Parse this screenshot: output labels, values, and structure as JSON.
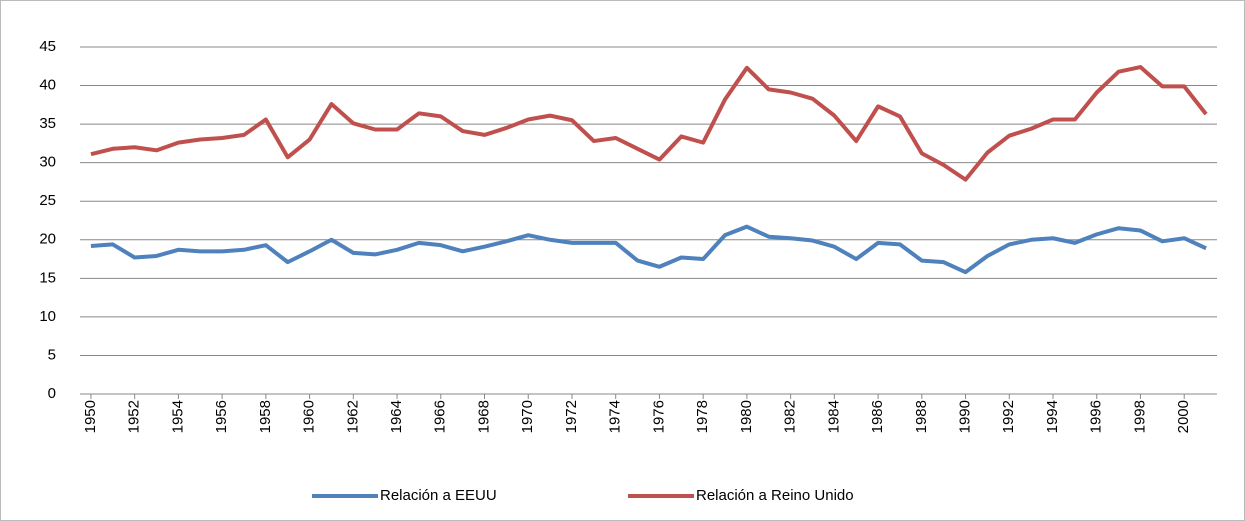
{
  "chart_data": {
    "type": "line",
    "x": [
      1950,
      1951,
      1952,
      1953,
      1954,
      1955,
      1956,
      1957,
      1958,
      1959,
      1960,
      1961,
      1962,
      1963,
      1964,
      1965,
      1966,
      1967,
      1968,
      1969,
      1970,
      1971,
      1972,
      1973,
      1974,
      1975,
      1976,
      1977,
      1978,
      1979,
      1980,
      1981,
      1982,
      1983,
      1984,
      1985,
      1986,
      1987,
      1988,
      1989,
      1990,
      1991,
      1992,
      1993,
      1994,
      1995,
      1996,
      1997,
      1998,
      1999,
      2000,
      2001
    ],
    "series": [
      {
        "name": "Relación a EEUU",
        "color": "#4f81bd",
        "values": [
          19.2,
          19.4,
          17.7,
          17.9,
          18.7,
          18.5,
          18.5,
          18.7,
          19.3,
          17.1,
          18.5,
          20.0,
          18.3,
          18.1,
          18.7,
          19.6,
          19.3,
          18.5,
          19.1,
          19.8,
          20.6,
          20.0,
          19.6,
          19.6,
          19.6,
          17.3,
          16.5,
          17.7,
          17.5,
          20.6,
          21.7,
          20.4,
          20.2,
          19.9,
          19.1,
          17.5,
          19.6,
          19.4,
          17.3,
          17.1,
          15.8,
          17.9,
          19.4,
          20.0,
          20.2,
          19.6,
          20.7,
          21.5,
          21.2,
          19.8,
          20.2,
          18.9
        ]
      },
      {
        "name": "Relación a Reino Unido",
        "color": "#c0504d",
        "values": [
          31.1,
          31.8,
          32.0,
          31.6,
          32.6,
          33.0,
          33.2,
          33.6,
          35.6,
          30.7,
          33.0,
          37.6,
          35.1,
          34.3,
          34.3,
          36.4,
          36.0,
          34.1,
          33.6,
          34.5,
          35.6,
          36.1,
          35.5,
          32.8,
          33.2,
          31.8,
          30.4,
          33.4,
          32.6,
          38.2,
          42.3,
          39.5,
          39.1,
          38.3,
          36.1,
          32.8,
          37.3,
          36.0,
          31.2,
          29.7,
          27.8,
          31.3,
          33.5,
          34.4,
          35.6,
          35.6,
          39.1,
          41.8,
          42.4,
          39.9,
          39.9,
          36.3
        ]
      }
    ],
    "xlim": [
      1949.5,
      2001.5
    ],
    "xticks": [
      1950,
      1952,
      1954,
      1956,
      1958,
      1960,
      1962,
      1964,
      1966,
      1968,
      1970,
      1972,
      1974,
      1976,
      1978,
      1980,
      1982,
      1984,
      1986,
      1988,
      1990,
      1992,
      1994,
      1996,
      1998,
      2000
    ],
    "ylim": [
      0,
      45
    ],
    "yticks": [
      0,
      5,
      10,
      15,
      20,
      25,
      30,
      35,
      40,
      45
    ],
    "grid": true,
    "legend": "bottom"
  }
}
